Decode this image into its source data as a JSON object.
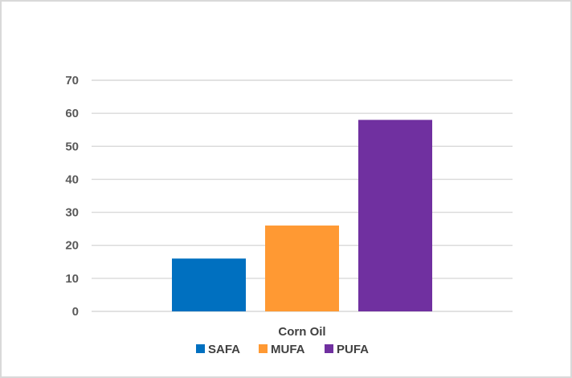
{
  "chart_data": {
    "type": "bar",
    "categories": [
      "Corn Oil"
    ],
    "series": [
      {
        "name": "SAFA",
        "values": [
          16
        ],
        "color": "#0070c0"
      },
      {
        "name": "MUFA",
        "values": [
          26
        ],
        "color": "#ff9933"
      },
      {
        "name": "PUFA",
        "values": [
          58
        ],
        "color": "#7030a0"
      }
    ],
    "title": "",
    "xlabel": "",
    "ylabel": "",
    "ylim": [
      0,
      70
    ],
    "yticks": [
      "0",
      "10",
      "20",
      "30",
      "40",
      "50",
      "60",
      "70"
    ],
    "grid": true,
    "legend": "bottom"
  }
}
